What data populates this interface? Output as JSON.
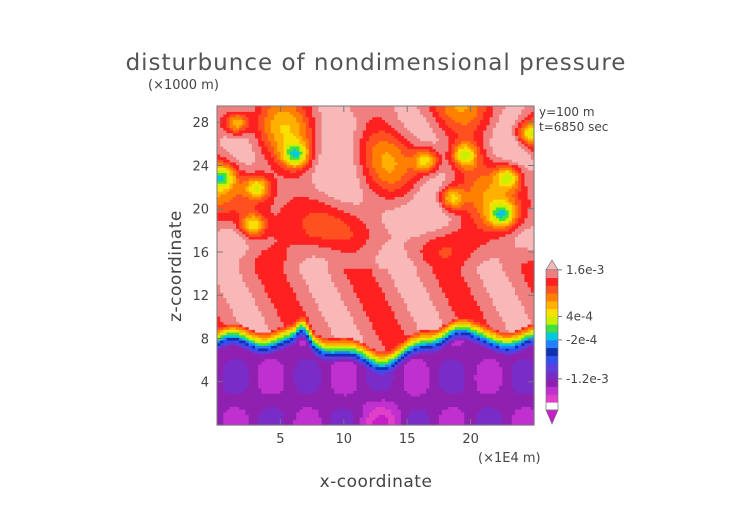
{
  "chart_data": {
    "type": "heatmap",
    "title": "disturbunce of nondimensional pressure",
    "xlabel": "x-coordinate",
    "ylabel": "z-coordinate",
    "x_unit": "(×1E4 m)",
    "y_unit": "(×1000 m)",
    "annotation": [
      "y=100 m",
      "t=6850 sec"
    ],
    "xlim": [
      0,
      25
    ],
    "ylim": [
      0,
      29.5
    ],
    "x_ticks": [
      5,
      10,
      15,
      20
    ],
    "y_ticks": [
      4,
      8,
      12,
      16,
      20,
      24,
      28
    ],
    "colorbar": {
      "labels": [
        "1.6e-3",
        "4e-4",
        "-2e-4",
        "-1.2e-3"
      ],
      "label_levels": [
        0.0016,
        0.0004,
        -0.0002,
        -0.0012
      ],
      "levels": [
        -0.0018,
        -0.0016,
        -0.0014,
        -0.0012,
        -0.001,
        -0.0008,
        -0.0006,
        -0.0004,
        -0.0002,
        0,
        0.0002,
        0.0004,
        0.0006,
        0.0008,
        0.001,
        0.0012,
        0.0014,
        0.0016
      ],
      "colors": [
        "#c81cc8",
        "#e040c8",
        "#c030d0",
        "#9020b0",
        "#7a2cc8",
        "#5a40e0",
        "#3050f0",
        "#1030b0",
        "#2080ff",
        "#00c8e0",
        "#40e040",
        "#c8f000",
        "#f8e000",
        "#ffb000",
        "#ff8000",
        "#ff5020",
        "#ff2020",
        "#f08080",
        "#f8b8b8"
      ]
    }
  }
}
